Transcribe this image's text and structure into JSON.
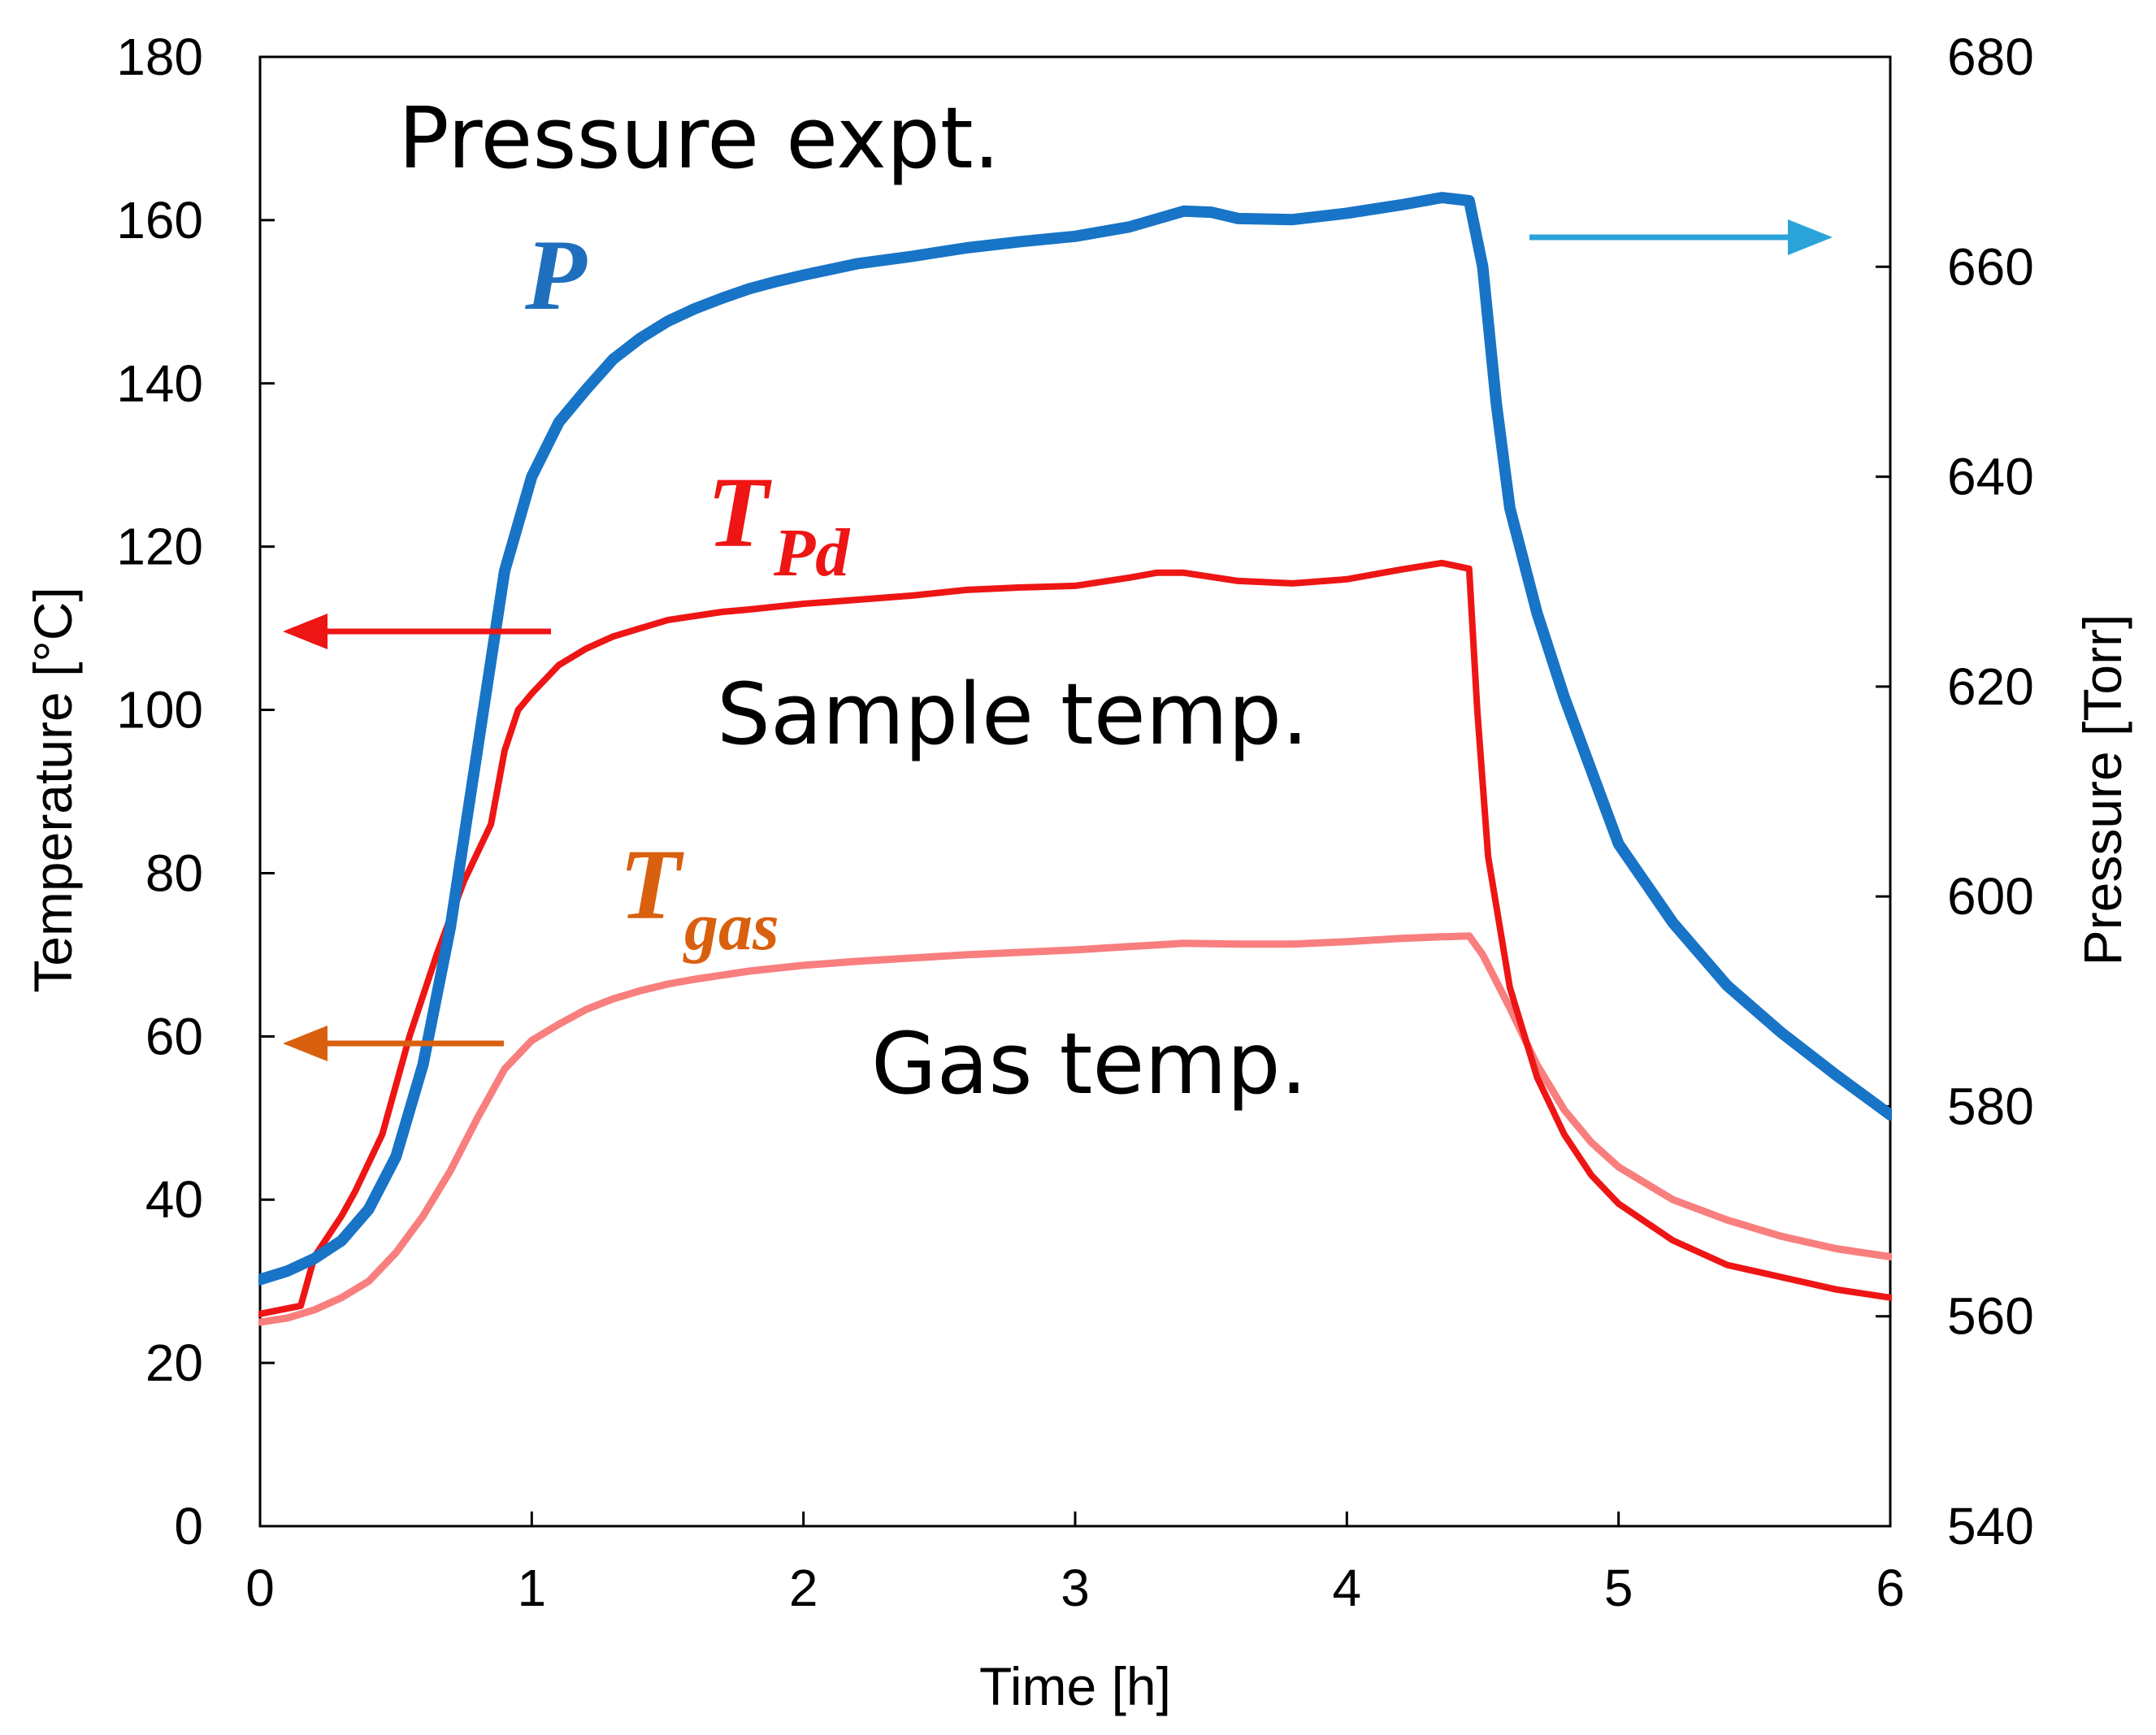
{
  "chart_data": {
    "type": "line",
    "x_axis": {
      "label": "Time [h]",
      "range": [
        0,
        6
      ],
      "ticks": [
        "0",
        "1",
        "2",
        "3",
        "4",
        "5",
        "6"
      ]
    },
    "y_axis_left": {
      "label": "Temperature [°C]",
      "range": [
        0,
        180
      ],
      "ticks": [
        "0",
        "20",
        "40",
        "60",
        "80",
        "100",
        "120",
        "140",
        "160",
        "180"
      ]
    },
    "y_axis_right": {
      "label": "Pressure [Torr]",
      "range": [
        540,
        680
      ],
      "ticks": [
        "540",
        "560",
        "580",
        "600",
        "620",
        "640",
        "660",
        "680"
      ]
    },
    "annotations": {
      "pressure_expt": "Pressure expt.",
      "sample_temp": "Sample temp.",
      "gas_temp": "Gas temp."
    },
    "series": [
      {
        "id": "P",
        "name": "P",
        "subscript": "",
        "axis": "right",
        "color": "#1874c6",
        "label_color": "#1f6fbf",
        "arrow_color": "#2aa3d9",
        "points": [
          [
            0,
            563.5
          ],
          [
            0.1,
            564.3
          ],
          [
            0.2,
            565.5
          ],
          [
            0.3,
            567.2
          ],
          [
            0.4,
            570.2
          ],
          [
            0.5,
            575.2
          ],
          [
            0.6,
            584
          ],
          [
            0.7,
            597
          ],
          [
            0.8,
            614
          ],
          [
            0.9,
            631
          ],
          [
            1.0,
            640
          ],
          [
            1.1,
            645.2
          ],
          [
            1.2,
            648.3
          ],
          [
            1.3,
            651.2
          ],
          [
            1.4,
            653.2
          ],
          [
            1.5,
            654.8
          ],
          [
            1.6,
            656
          ],
          [
            1.7,
            657
          ],
          [
            1.8,
            657.9
          ],
          [
            1.9,
            658.6
          ],
          [
            2.0,
            659.2
          ],
          [
            2.2,
            660.3
          ],
          [
            2.4,
            661
          ],
          [
            2.6,
            661.8
          ],
          [
            2.8,
            662.4
          ],
          [
            3.0,
            662.9
          ],
          [
            3.2,
            663.8
          ],
          [
            3.4,
            665.3
          ],
          [
            3.5,
            665.2
          ],
          [
            3.6,
            664.6
          ],
          [
            3.8,
            664.5
          ],
          [
            4.0,
            665.1
          ],
          [
            4.2,
            665.9
          ],
          [
            4.35,
            666.6
          ],
          [
            4.45,
            666.3
          ],
          [
            4.5,
            660
          ],
          [
            4.55,
            647
          ],
          [
            4.6,
            637
          ],
          [
            4.7,
            627
          ],
          [
            4.8,
            619
          ],
          [
            4.9,
            612
          ],
          [
            5.0,
            605
          ],
          [
            5.2,
            597.5
          ],
          [
            5.4,
            591.5
          ],
          [
            5.6,
            587
          ],
          [
            5.8,
            583
          ],
          [
            6.0,
            579.2
          ]
        ]
      },
      {
        "id": "TPd",
        "name": "T",
        "subscript": "Pd",
        "axis": "left",
        "color": "#ee1515",
        "label_color": "#ee1515",
        "arrow_color": "#ee1515",
        "points": [
          [
            0,
            26
          ],
          [
            0.15,
            27
          ],
          [
            0.2,
            33
          ],
          [
            0.3,
            38
          ],
          [
            0.35,
            41
          ],
          [
            0.45,
            48
          ],
          [
            0.55,
            60
          ],
          [
            0.65,
            70
          ],
          [
            0.75,
            79
          ],
          [
            0.85,
            86
          ],
          [
            0.9,
            95
          ],
          [
            0.95,
            100
          ],
          [
            1.0,
            102
          ],
          [
            1.1,
            105.5
          ],
          [
            1.2,
            107.5
          ],
          [
            1.3,
            109
          ],
          [
            1.4,
            110
          ],
          [
            1.5,
            111
          ],
          [
            1.6,
            111.5
          ],
          [
            1.7,
            112
          ],
          [
            1.8,
            112.3
          ],
          [
            2.0,
            113
          ],
          [
            2.2,
            113.5
          ],
          [
            2.4,
            114
          ],
          [
            2.6,
            114.7
          ],
          [
            2.8,
            115
          ],
          [
            3.0,
            115.2
          ],
          [
            3.2,
            116.2
          ],
          [
            3.3,
            116.8
          ],
          [
            3.4,
            116.8
          ],
          [
            3.6,
            115.8
          ],
          [
            3.8,
            115.5
          ],
          [
            4.0,
            116
          ],
          [
            4.2,
            117.2
          ],
          [
            4.35,
            118
          ],
          [
            4.45,
            117.3
          ],
          [
            4.48,
            100
          ],
          [
            4.52,
            82
          ],
          [
            4.6,
            66
          ],
          [
            4.7,
            55
          ],
          [
            4.8,
            48
          ],
          [
            4.9,
            43
          ],
          [
            5.0,
            39.5
          ],
          [
            5.2,
            35
          ],
          [
            5.4,
            32
          ],
          [
            5.6,
            30.5
          ],
          [
            5.8,
            29
          ],
          [
            6.0,
            28
          ]
        ]
      },
      {
        "id": "Tgas",
        "name": "T",
        "subscript": "gas",
        "axis": "left",
        "color": "#f97e7e",
        "label_color": "#d9600f",
        "arrow_color": "#d9600f",
        "points": [
          [
            0,
            25
          ],
          [
            0.1,
            25.5
          ],
          [
            0.2,
            26.5
          ],
          [
            0.3,
            28
          ],
          [
            0.4,
            30
          ],
          [
            0.5,
            33.5
          ],
          [
            0.6,
            38
          ],
          [
            0.7,
            43.5
          ],
          [
            0.8,
            50
          ],
          [
            0.9,
            56
          ],
          [
            1.0,
            59.5
          ],
          [
            1.1,
            61.5
          ],
          [
            1.2,
            63.3
          ],
          [
            1.3,
            64.6
          ],
          [
            1.4,
            65.6
          ],
          [
            1.5,
            66.4
          ],
          [
            1.6,
            67
          ],
          [
            1.8,
            68
          ],
          [
            2.0,
            68.7
          ],
          [
            2.2,
            69.2
          ],
          [
            2.4,
            69.6
          ],
          [
            2.6,
            70
          ],
          [
            2.8,
            70.3
          ],
          [
            3.0,
            70.6
          ],
          [
            3.2,
            71
          ],
          [
            3.4,
            71.4
          ],
          [
            3.6,
            71.3
          ],
          [
            3.8,
            71.3
          ],
          [
            4.0,
            71.6
          ],
          [
            4.2,
            72
          ],
          [
            4.35,
            72.2
          ],
          [
            4.45,
            72.3
          ],
          [
            4.5,
            70
          ],
          [
            4.6,
            63.5
          ],
          [
            4.7,
            56.5
          ],
          [
            4.8,
            51
          ],
          [
            4.9,
            47
          ],
          [
            5.0,
            44
          ],
          [
            5.2,
            40
          ],
          [
            5.4,
            37.5
          ],
          [
            5.6,
            35.5
          ],
          [
            5.8,
            34
          ],
          [
            6.0,
            33
          ]
        ]
      }
    ]
  }
}
